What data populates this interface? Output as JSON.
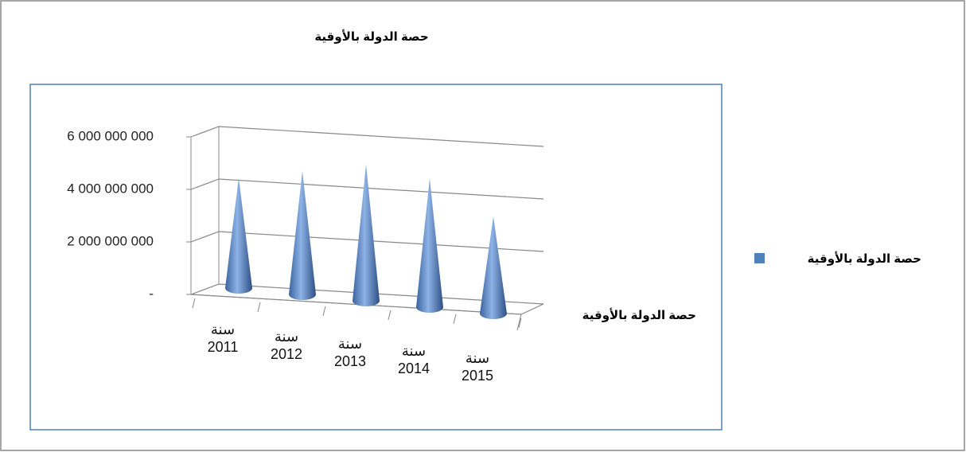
{
  "chart_data": {
    "type": "cone3d",
    "title": "حصة الدولة بالأوقية",
    "x_label": "حصة الدولة بالأوقية",
    "categories": [
      "سنة 2011",
      "سنة 2012",
      "سنة 2013",
      "سنة 2014",
      "سنة 2015"
    ],
    "series": [
      {
        "name": "حصة الدولة بالأوقية",
        "color": "#4f81bd",
        "values": [
          4200000000,
          4700000000,
          5200000000,
          4900000000,
          3700000000
        ]
      }
    ],
    "ylim": [
      0,
      6000000000
    ],
    "yticks": [
      {
        "value": 0,
        "label": "-"
      },
      {
        "value": 2000000000,
        "label": "2 000 000 000"
      },
      {
        "value": 4000000000,
        "label": "4 000 000 000"
      },
      {
        "value": 6000000000,
        "label": "6 000 000 000"
      }
    ],
    "grid": true,
    "legend": "right"
  }
}
